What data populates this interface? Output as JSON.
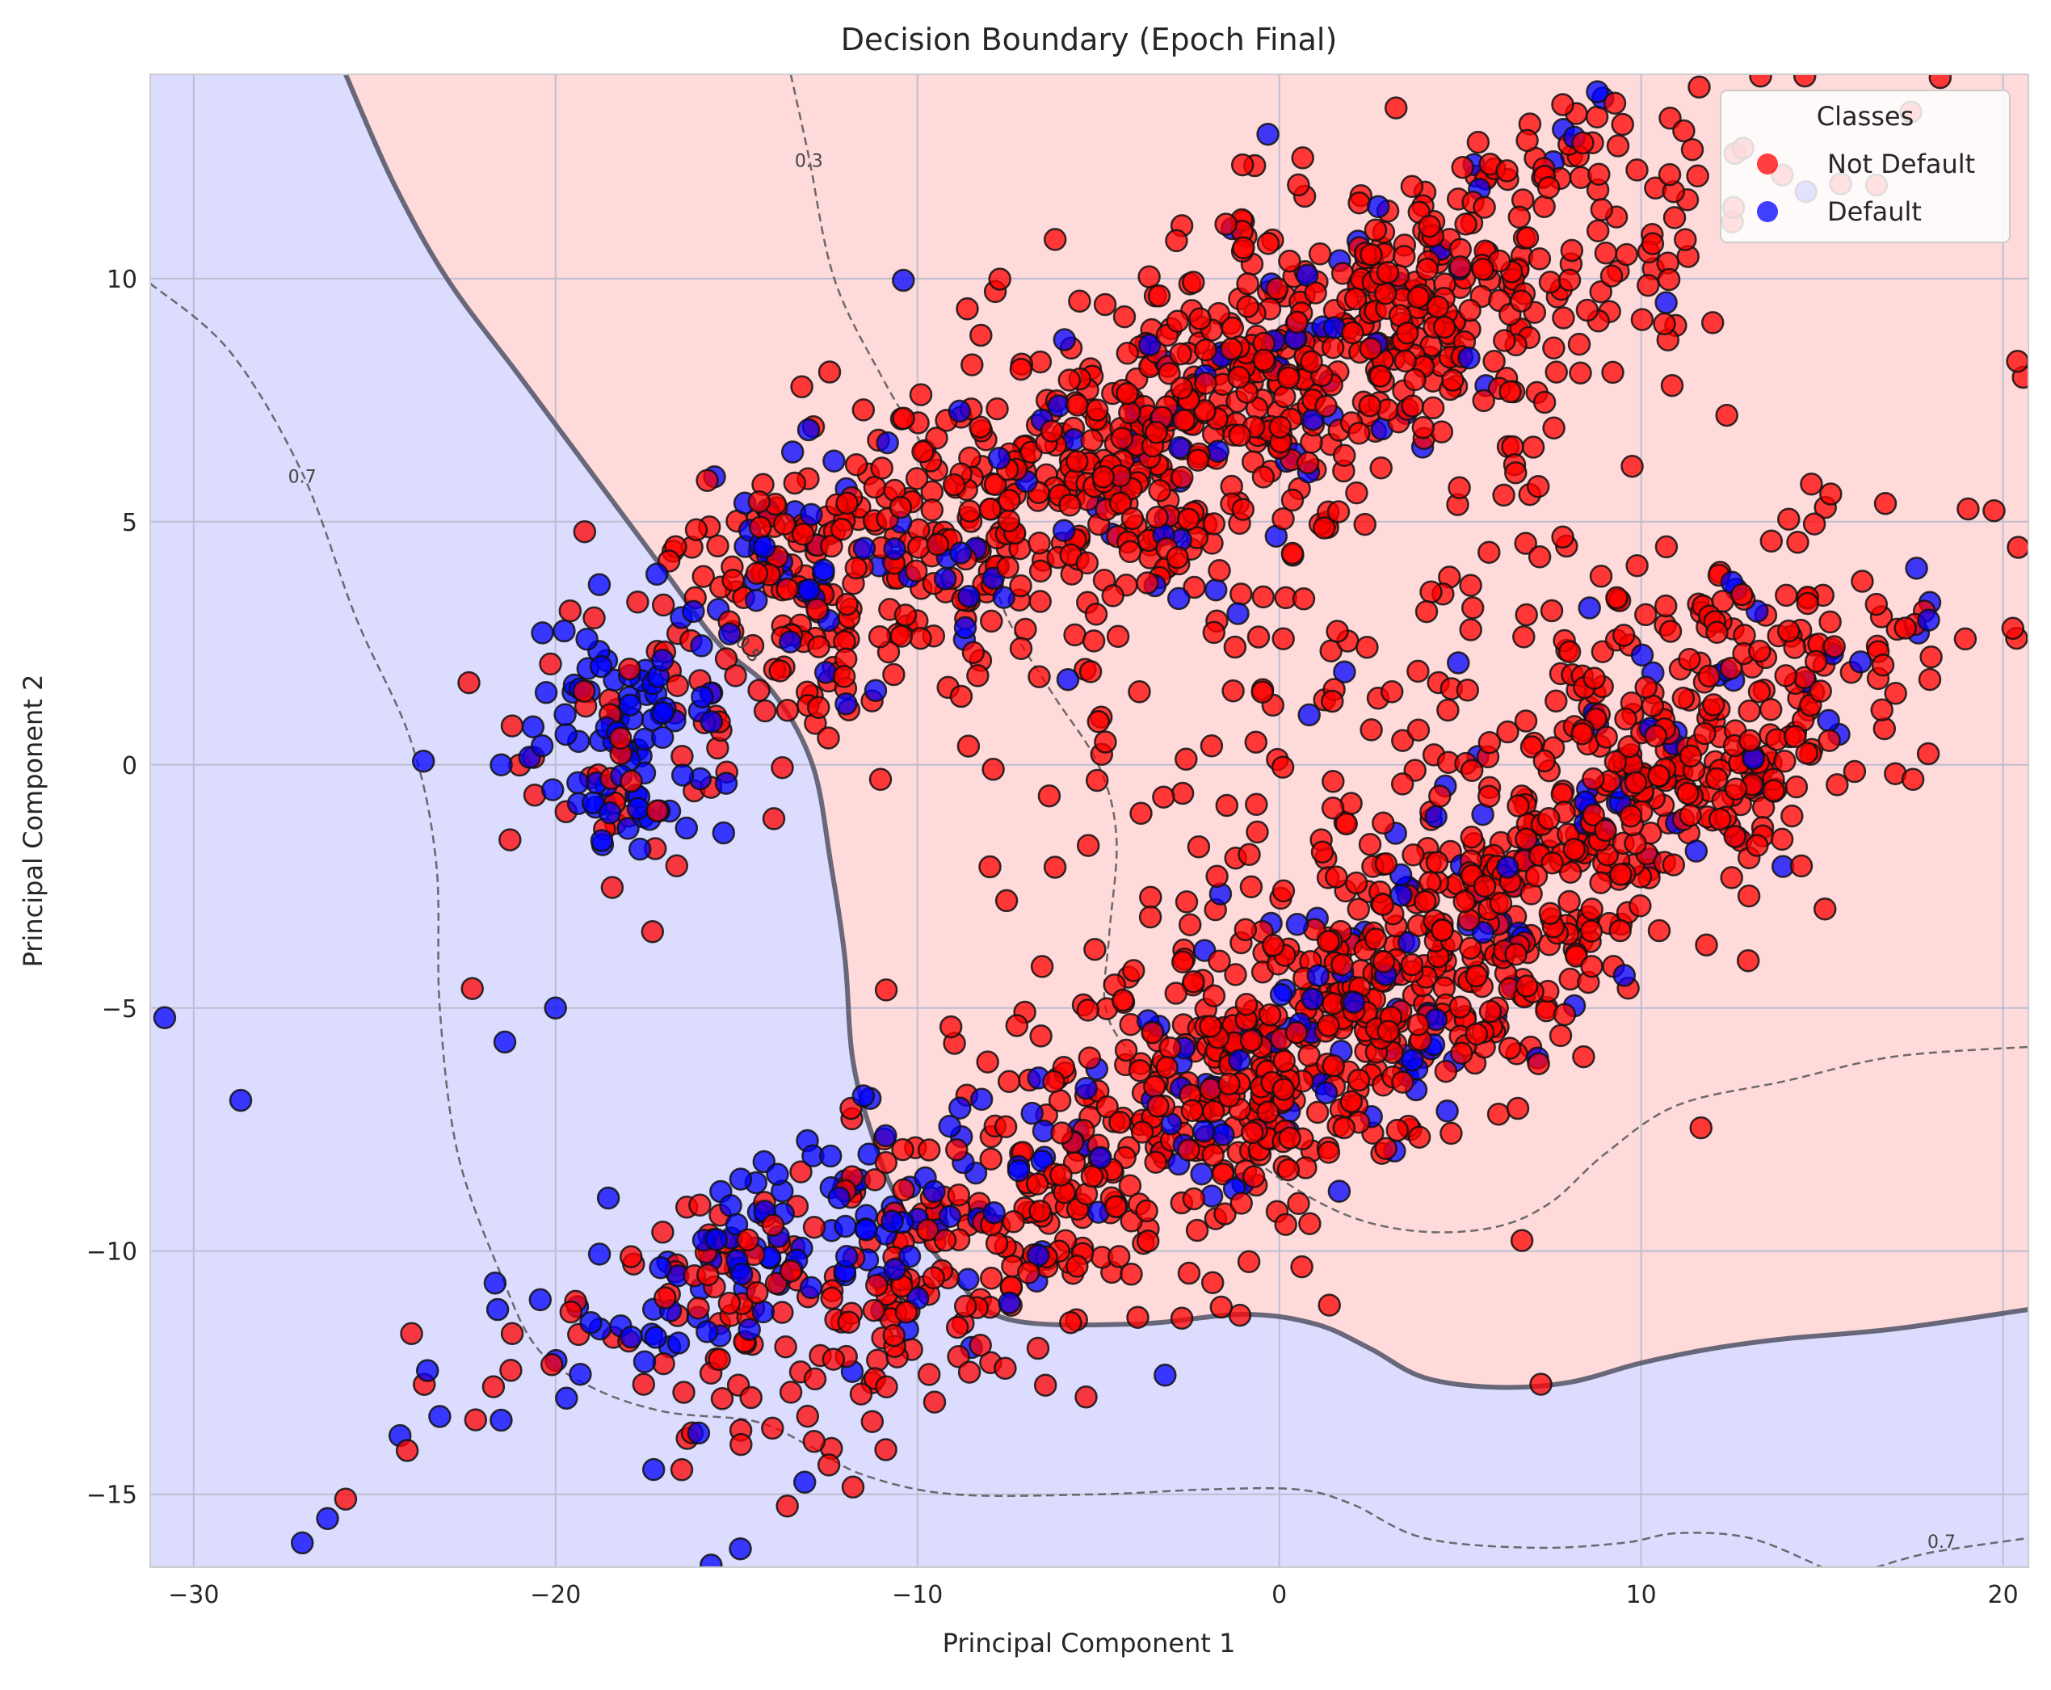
{
  "chart_data": {
    "type": "scatter",
    "title": "Decision Boundary (Epoch Final)",
    "xlabel": "Principal Component 1",
    "ylabel": "Principal Component 2",
    "xlim": [
      -31.2,
      20.7
    ],
    "ylim": [
      -16.5,
      14.2
    ],
    "xticks": [
      -30,
      -20,
      -10,
      0,
      10,
      20
    ],
    "yticks": [
      -15,
      -10,
      -5,
      0,
      5,
      10
    ],
    "xtick_labels": [
      "−30",
      "−20",
      "−10",
      "0",
      "10",
      "20"
    ],
    "ytick_labels": [
      "−15",
      "−10",
      "−5",
      "0",
      "5",
      "10"
    ],
    "grid": true,
    "legend": {
      "title": "Classes",
      "placement": "top-right",
      "entries": [
        {
          "label": "Not Default",
          "color": "#ff0000"
        },
        {
          "label": "Default",
          "color": "#0000ff"
        }
      ]
    },
    "regions": {
      "not_default_color": "#ffdada",
      "default_color": "#dcdcff"
    },
    "decision_boundary": {
      "level": "0.5",
      "points": [
        [
          -25.8,
          14.2
        ],
        [
          -24.5,
          12.0
        ],
        [
          -23.0,
          10.0
        ],
        [
          -21.0,
          8.0
        ],
        [
          -19.0,
          6.0
        ],
        [
          -17.0,
          4.0
        ],
        [
          -15.5,
          2.5
        ],
        [
          -14.0,
          1.5
        ],
        [
          -12.9,
          0.0
        ],
        [
          -12.4,
          -2.0
        ],
        [
          -12.0,
          -4.0
        ],
        [
          -11.8,
          -6.0
        ],
        [
          -11.3,
          -7.5
        ],
        [
          -10.5,
          -9.0
        ],
        [
          -9.0,
          -10.5
        ],
        [
          -7.5,
          -11.4
        ],
        [
          -4.0,
          -11.5
        ],
        [
          -1.0,
          -11.3
        ],
        [
          1.0,
          -11.5
        ],
        [
          2.5,
          -12.0
        ],
        [
          4.0,
          -12.6
        ],
        [
          6.0,
          -12.8
        ],
        [
          8.0,
          -12.7
        ],
        [
          10.0,
          -12.3
        ],
        [
          12.0,
          -12.0
        ],
        [
          14.0,
          -11.8
        ],
        [
          17.0,
          -11.6
        ],
        [
          20.7,
          -11.2
        ]
      ]
    },
    "contours": [
      {
        "label": "0.3",
        "points": [
          [
            -13.5,
            14.2
          ],
          [
            -13.0,
            12.5
          ],
          [
            -12.3,
            10.0
          ],
          [
            -11.0,
            8.0
          ],
          [
            -9.8,
            6.5
          ],
          [
            -8.5,
            5.0
          ],
          [
            -7.5,
            3.0
          ],
          [
            -6.3,
            1.5
          ],
          [
            -5.0,
            0.0
          ],
          [
            -4.5,
            -1.5
          ],
          [
            -4.7,
            -3.5
          ],
          [
            -4.8,
            -5.0
          ],
          [
            -4.0,
            -6.0
          ],
          [
            -2.0,
            -7.3
          ],
          [
            0.0,
            -8.5
          ],
          [
            2.0,
            -9.3
          ],
          [
            4.0,
            -9.6
          ],
          [
            6.0,
            -9.5
          ],
          [
            7.5,
            -9.0
          ],
          [
            9.0,
            -8.0
          ],
          [
            11.0,
            -7.0
          ],
          [
            14.0,
            -6.5
          ],
          [
            17.0,
            -6.0
          ],
          [
            20.7,
            -5.8
          ]
        ],
        "label_at": [
          -13.0,
          12.3
        ]
      },
      {
        "label": "0.7",
        "points": [
          [
            -31.2,
            9.9
          ],
          [
            -29.0,
            8.5
          ],
          [
            -27.0,
            6.0
          ],
          [
            -25.5,
            3.0
          ],
          [
            -24.0,
            0.5
          ],
          [
            -23.3,
            -2.0
          ],
          [
            -23.2,
            -5.0
          ],
          [
            -22.7,
            -8.0
          ],
          [
            -21.5,
            -10.5
          ],
          [
            -20.5,
            -12.0
          ],
          [
            -19.0,
            -12.8
          ],
          [
            -17.0,
            -13.3
          ],
          [
            -14.5,
            -13.5
          ],
          [
            -13.0,
            -14.0
          ],
          [
            -11.5,
            -14.6
          ],
          [
            -9.0,
            -15.0
          ],
          [
            -5.0,
            -15.0
          ],
          [
            -2.0,
            -14.9
          ],
          [
            0.5,
            -14.9
          ],
          [
            2.0,
            -15.2
          ],
          [
            4.0,
            -15.9
          ],
          [
            7.0,
            -16.1
          ],
          [
            9.5,
            -16.0
          ],
          [
            11.0,
            -15.8
          ],
          [
            13.0,
            -15.9
          ],
          [
            15.0,
            -16.5
          ]
        ],
        "label_at": [
          -27.0,
          5.8
        ]
      },
      {
        "label": "0.7",
        "points": [
          [
            16.5,
            -16.5
          ],
          [
            18.0,
            -16.2
          ],
          [
            20.7,
            -15.9
          ]
        ],
        "label_at": [
          18.3,
          -16.1
        ]
      }
    ]
  }
}
